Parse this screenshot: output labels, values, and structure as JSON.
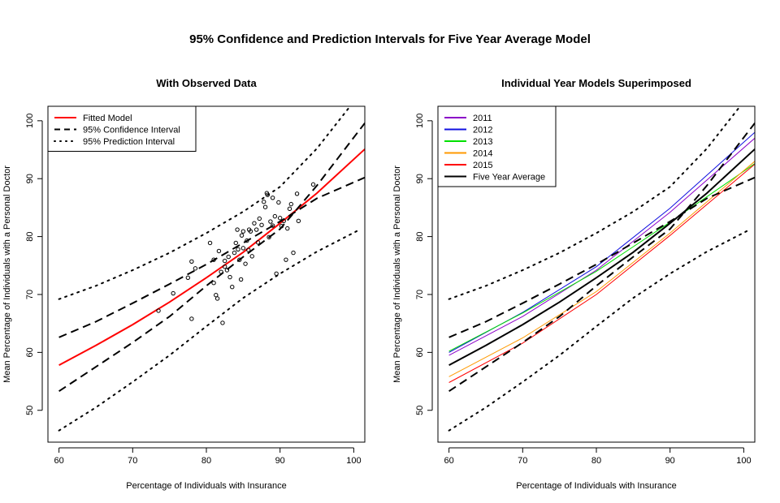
{
  "page_title": "95% Confidence and Prediction Intervals for Five Year Average Model",
  "chart_data": [
    {
      "type": "scatter",
      "title": "With Observed Data",
      "xlabel": "Percentage of Individuals with Insurance",
      "ylabel": "Mean Percentage of Individuals with a Personal Doctor",
      "xlim": [
        58.5,
        101.5
      ],
      "ylim": [
        44.5,
        102.5
      ],
      "xticks": [
        60,
        70,
        80,
        90,
        100
      ],
      "yticks": [
        50,
        60,
        70,
        80,
        90,
        100
      ],
      "legend_position": "top-left",
      "series": [
        {
          "name": "Fitted Model",
          "color": "#ff0000",
          "style": "solid",
          "width": 2,
          "x": [
            60,
            65,
            70,
            75,
            80,
            85,
            90,
            95,
            101.5
          ],
          "y": [
            57.8,
            61.2,
            64.8,
            68.7,
            72.9,
            77.3,
            82.3,
            87.5,
            95.1
          ]
        },
        {
          "name": "95% Confidence Interval",
          "color": "#000000",
          "style": "dashed",
          "width": 2,
          "x": [
            60,
            65,
            70,
            75,
            80,
            85,
            90,
            95,
            101.5
          ],
          "y": [
            62.6,
            65.3,
            68.5,
            71.8,
            75.2,
            78.9,
            82.6,
            86.6,
            90.2
          ]
        },
        {
          "name": "95% Confidence Interval (lower)",
          "legend": false,
          "color": "#000000",
          "style": "dashed",
          "width": 2,
          "x": [
            60,
            65,
            70,
            75,
            80,
            85,
            90,
            95,
            101.5
          ],
          "y": [
            53.3,
            57.5,
            61.7,
            66.2,
            71.5,
            76.5,
            81.3,
            88.8,
            99.6
          ]
        },
        {
          "name": "95% Prediction Interval",
          "color": "#000000",
          "style": "dotted",
          "width": 2,
          "x": [
            60,
            65,
            70,
            75,
            80,
            85,
            90,
            95,
            99.5
          ],
          "y": [
            69.2,
            71.5,
            74.2,
            77.2,
            80.6,
            84.3,
            88.6,
            95.2,
            102.5
          ]
        },
        {
          "name": "95% Prediction Interval (lower)",
          "legend": false,
          "color": "#000000",
          "style": "dotted",
          "width": 2,
          "x": [
            60,
            65,
            70,
            75,
            80,
            85,
            90,
            95,
            100.5
          ],
          "y": [
            46.5,
            50.5,
            54.9,
            59.5,
            64.5,
            69.4,
            73.6,
            77.4,
            81.0
          ]
        }
      ],
      "points": {
        "x": [
          73.5,
          75.5,
          77.5,
          78,
          78,
          78.5,
          80.5,
          81,
          81,
          81.3,
          81.5,
          81.7,
          82,
          82.2,
          82.5,
          82.5,
          82.8,
          83,
          83.2,
          83.5,
          83.8,
          84,
          84.2,
          84.3,
          84.5,
          84.7,
          84.8,
          85,
          85,
          85.3,
          85.5,
          85.7,
          85.8,
          86,
          86.2,
          86.5,
          86.8,
          87,
          87.2,
          87.5,
          87.8,
          88,
          88.2,
          88.3,
          88.5,
          88.7,
          89,
          89,
          89.3,
          89.5,
          89.8,
          90,
          90.2,
          90.5,
          90.8,
          91,
          91.3,
          91.5,
          91.8,
          92.3,
          92.5,
          94.5
        ],
        "y": [
          67.2,
          70.2,
          72.9,
          65.8,
          75.7,
          74.5,
          78.9,
          76.0,
          72.0,
          69.9,
          69.3,
          77.5,
          73.9,
          65.1,
          74.8,
          75.8,
          74.2,
          76.5,
          73.0,
          71.3,
          77.2,
          78.9,
          81.2,
          77.8,
          76.0,
          72.6,
          80.2,
          78.0,
          80.9,
          75.3,
          79.3,
          77.7,
          81.2,
          80.9,
          76.6,
          82.3,
          81.2,
          79.0,
          83.1,
          82.0,
          86.0,
          85.1,
          87.5,
          87.2,
          79.9,
          82.6,
          86.7,
          81.9,
          83.5,
          73.6,
          85.9,
          83.2,
          81.8,
          82.7,
          76.0,
          81.4,
          84.8,
          85.6,
          77.2,
          87.4,
          82.7,
          89.0
        ]
      }
    },
    {
      "type": "line",
      "title": "Individual Year Models Superimposed",
      "xlabel": "Percentage of Individuals with Insurance",
      "ylabel": "Mean Percentage of Individuals with a Personal Doctor",
      "xlim": [
        58.5,
        101.5
      ],
      "ylim": [
        44.5,
        102.5
      ],
      "xticks": [
        60,
        70,
        80,
        90,
        100
      ],
      "yticks": [
        50,
        60,
        70,
        80,
        90,
        100
      ],
      "legend_position": "top-left",
      "series": [
        {
          "name": "2011",
          "color": "#8b00c8",
          "style": "solid",
          "width": 1,
          "x": [
            60,
            70,
            80,
            90,
            101.5
          ],
          "y": [
            59.5,
            66.2,
            74.2,
            84.2,
            97.0
          ]
        },
        {
          "name": "2012",
          "color": "#1010e0",
          "style": "solid",
          "width": 1,
          "x": [
            60,
            70,
            80,
            90,
            101.5
          ],
          "y": [
            60.0,
            66.9,
            74.8,
            84.9,
            98.0
          ]
        },
        {
          "name": "2013",
          "color": "#00e000",
          "style": "solid",
          "width": 1,
          "x": [
            60,
            70,
            80,
            90,
            101.5
          ],
          "y": [
            60.2,
            66.8,
            74.0,
            82.5,
            92.6
          ]
        },
        {
          "name": "2014",
          "color": "#ff9900",
          "style": "solid",
          "width": 1,
          "x": [
            60,
            70,
            80,
            90,
            101.5
          ],
          "y": [
            55.8,
            62.5,
            70.5,
            80.6,
            93.0
          ]
        },
        {
          "name": "2015",
          "color": "#ff0000",
          "style": "solid",
          "width": 1,
          "x": [
            60,
            70,
            80,
            90,
            101.5
          ],
          "y": [
            54.8,
            61.6,
            70.0,
            80.2,
            92.5
          ]
        },
        {
          "name": "Five Year Average",
          "color": "#000000",
          "style": "solid",
          "width": 2,
          "x": [
            60,
            65,
            70,
            75,
            80,
            85,
            90,
            95,
            101.5
          ],
          "y": [
            57.8,
            61.2,
            64.8,
            68.7,
            72.9,
            77.3,
            82.3,
            87.5,
            95.1
          ]
        },
        {
          "name": "95% Confidence Interval upper",
          "legend": false,
          "color": "#000000",
          "style": "dashed",
          "width": 2,
          "x": [
            60,
            65,
            70,
            75,
            80,
            85,
            90,
            95,
            101.5
          ],
          "y": [
            62.6,
            65.3,
            68.5,
            71.8,
            75.2,
            78.9,
            82.6,
            86.6,
            90.2
          ]
        },
        {
          "name": "95% Confidence Interval lower",
          "legend": false,
          "color": "#000000",
          "style": "dashed",
          "width": 2,
          "x": [
            60,
            65,
            70,
            75,
            80,
            85,
            90,
            95,
            101.5
          ],
          "y": [
            53.3,
            57.5,
            61.7,
            66.2,
            71.5,
            76.5,
            81.3,
            88.8,
            99.6
          ]
        },
        {
          "name": "95% Prediction Interval upper",
          "legend": false,
          "color": "#000000",
          "style": "dotted",
          "width": 2,
          "x": [
            60,
            65,
            70,
            75,
            80,
            85,
            90,
            95,
            99.5
          ],
          "y": [
            69.2,
            71.5,
            74.2,
            77.2,
            80.6,
            84.3,
            88.6,
            95.2,
            102.5
          ]
        },
        {
          "name": "95% Prediction Interval lower",
          "legend": false,
          "color": "#000000",
          "style": "dotted",
          "width": 2,
          "x": [
            60,
            65,
            70,
            75,
            80,
            85,
            90,
            95,
            100.5
          ],
          "y": [
            46.5,
            50.5,
            54.9,
            59.5,
            64.5,
            69.4,
            73.6,
            77.4,
            81.0
          ]
        }
      ]
    }
  ]
}
